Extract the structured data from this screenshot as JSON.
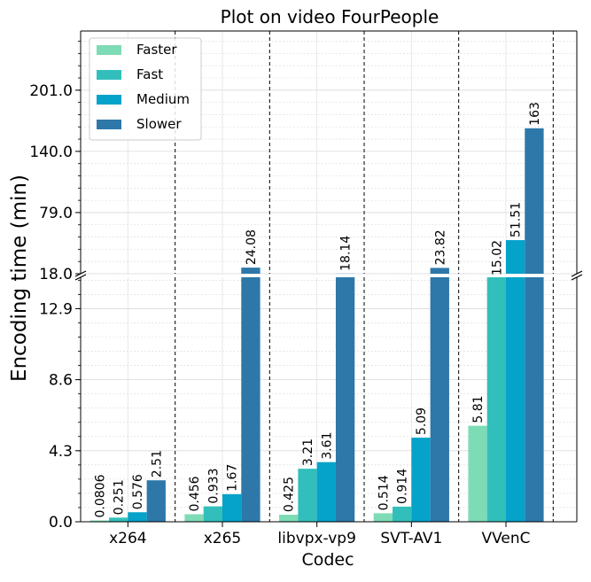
{
  "chart_data": {
    "type": "bar",
    "title": "Plot on video FourPeople",
    "xlabel": "Codec",
    "ylabel": "Encoding time (min)",
    "categories": [
      "x264",
      "x265",
      "libvpx-vp9",
      "SVT-AV1",
      "VVenC"
    ],
    "series": [
      {
        "name": "Faster",
        "color": "#7ddbb5",
        "values": [
          0.0806,
          0.456,
          0.425,
          0.514,
          5.81
        ],
        "labels": [
          "0.0806",
          "0.456",
          "0.425",
          "0.514",
          "5.81"
        ]
      },
      {
        "name": "Fast",
        "color": "#32bfbb",
        "values": [
          0.251,
          0.933,
          3.21,
          0.914,
          15.02
        ],
        "labels": [
          "0.251",
          "0.933",
          "3.21",
          "0.914",
          "15.02"
        ]
      },
      {
        "name": "Medium",
        "color": "#05a2ca",
        "values": [
          0.576,
          1.67,
          3.61,
          5.09,
          51.51
        ],
        "labels": [
          "0.576",
          "1.67",
          "3.61",
          "5.09",
          "51.51"
        ]
      },
      {
        "name": "Slower",
        "color": "#2d78a9",
        "values": [
          2.51,
          24.08,
          18.14,
          23.82,
          163
        ],
        "labels": [
          "2.51",
          "24.08",
          "18.14",
          "23.82",
          "163"
        ]
      }
    ],
    "broken_axis": true,
    "lower_ylim": [
      0,
      14.8
    ],
    "upper_ylim": [
      18,
      260
    ],
    "lower_yticks": [
      "0.0",
      "4.3",
      "8.6",
      "12.9"
    ],
    "upper_yticks": [
      "18.0",
      "79.0",
      "140.0",
      "201.0"
    ],
    "grid": true,
    "legend_position": "top-left"
  }
}
